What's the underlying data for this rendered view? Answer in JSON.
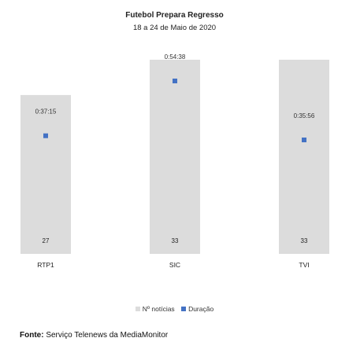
{
  "chart_data": {
    "type": "bar",
    "title": "Futebol Prepara Regresso",
    "subtitle": "18 a 24 de Maio de 2020",
    "categories": [
      "RTP1",
      "SIC",
      "TVI"
    ],
    "category_labels": [
      "RTP1",
      "SIC",
      "TVI"
    ],
    "series": [
      {
        "name": "Nº notícias",
        "kind": "bar",
        "axis": "primary",
        "values": [
          27,
          33,
          33
        ],
        "labels": [
          "27",
          "33",
          "33"
        ],
        "color": "#dcdcdc"
      },
      {
        "name": "Duração",
        "kind": "marker",
        "axis": "secondary",
        "values": [
          "0:37:15",
          "0:54:38",
          "0:35:56"
        ],
        "labels": [
          "0:37:15",
          "0:54:38",
          "0:35:56"
        ],
        "color": "#4472c4"
      }
    ],
    "grid": false,
    "legend_position": "bottom"
  },
  "source": {
    "label": "Fonte:",
    "text": "Serviço Telenews da MediaMonitor"
  }
}
